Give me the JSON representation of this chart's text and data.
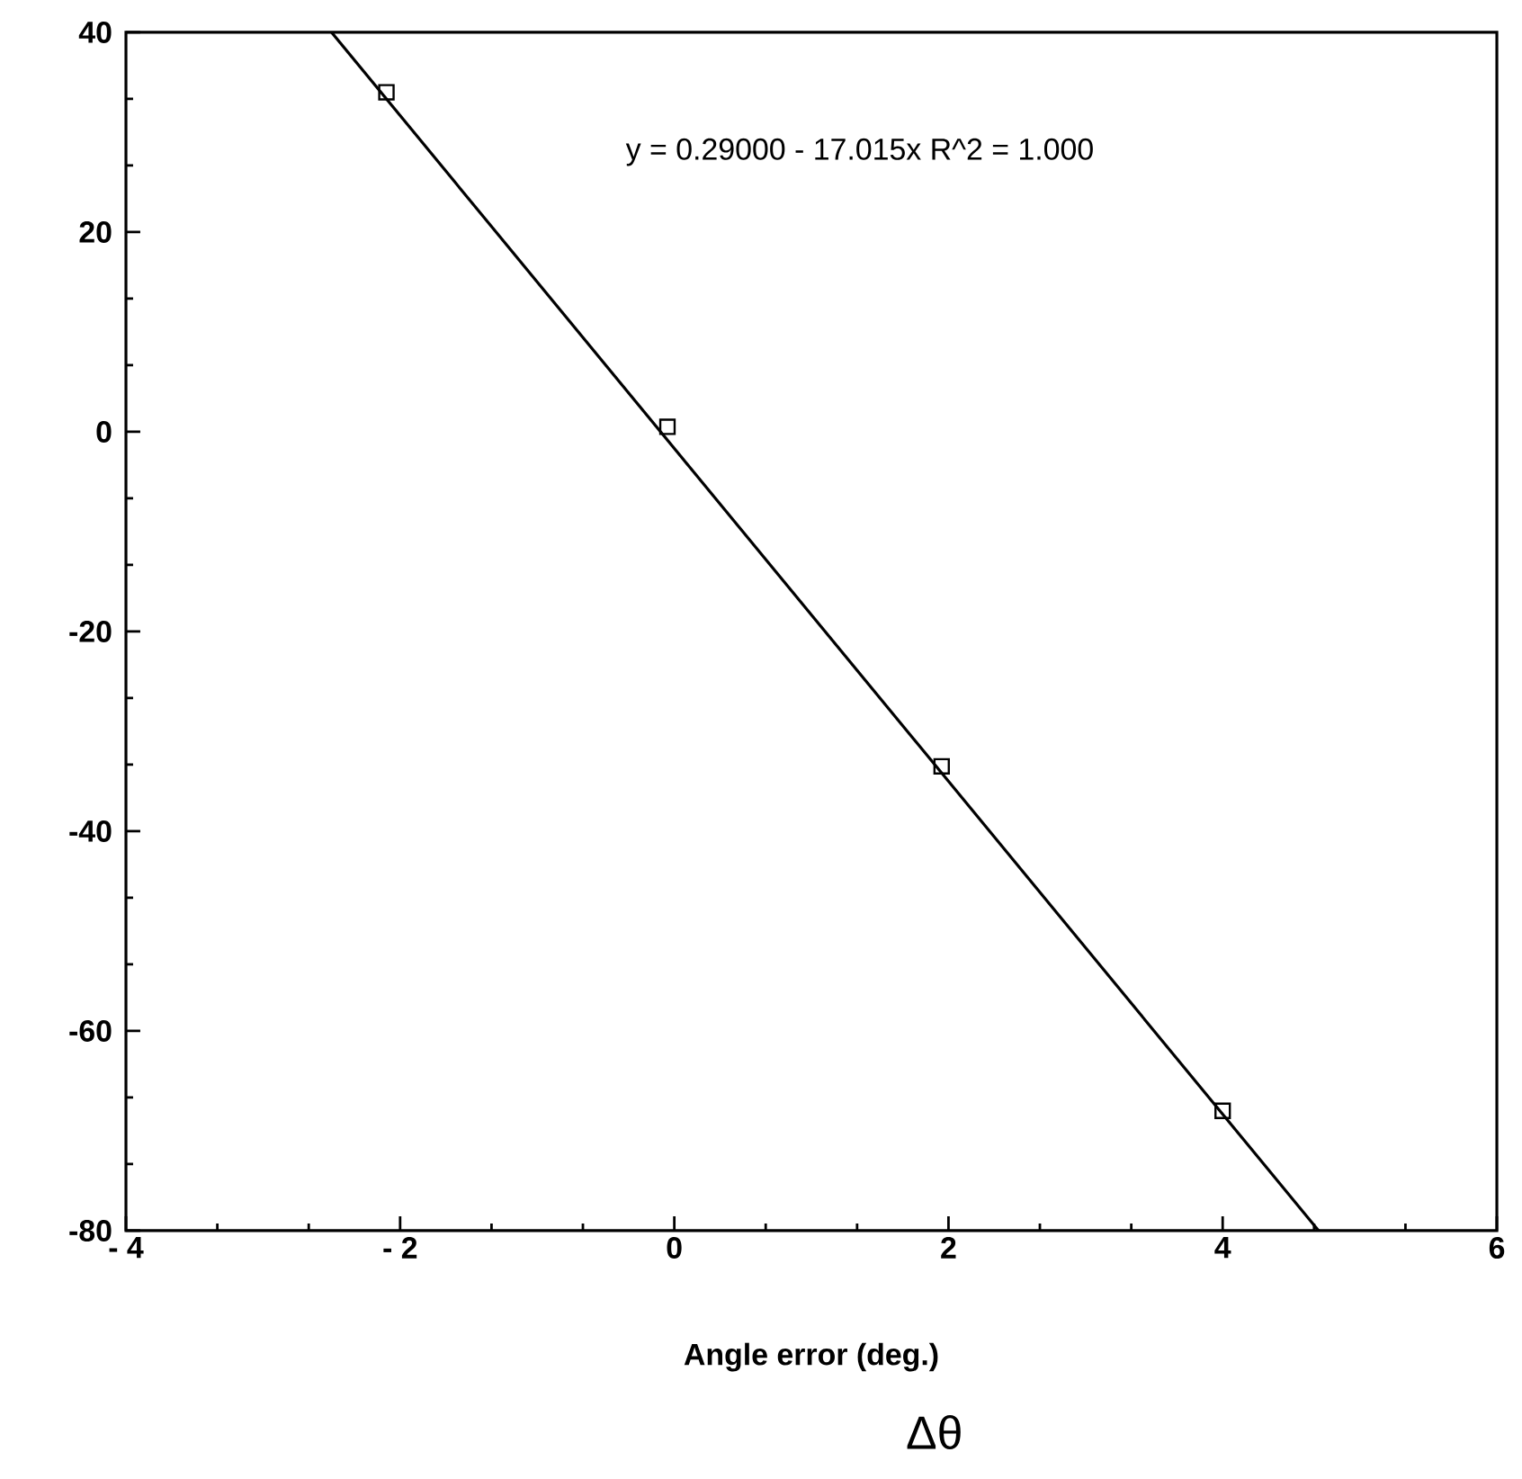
{
  "chart_data": {
    "type": "scatter",
    "xlabel": "Angle error (deg.)",
    "annotations": [
      "y = 0.29000 - 17.015x   R^2 = 1.000",
      "Δθ"
    ],
    "xlim": [
      -4,
      6
    ],
    "ylim": [
      -80,
      40
    ],
    "xticks": [
      {
        "value": -4,
        "label": "- 4"
      },
      {
        "value": -2,
        "label": "- 2"
      },
      0,
      2,
      4,
      6
    ],
    "yticks": [
      -80,
      -60,
      -40,
      -20,
      0,
      20,
      40
    ],
    "grid": false,
    "series": [
      {
        "color": "#000000",
        "marker": "square",
        "x": [
          -2.1,
          -0.05,
          1.95,
          4.0
        ],
        "values": [
          34,
          0.5,
          -33.5,
          -68
        ]
      },
      {
        "type": "line",
        "color": "#000000",
        "marker": "none",
        "line_style": "solid",
        "x": [
          -2.5,
          4.7
        ],
        "values": [
          40,
          -80
        ]
      }
    ]
  }
}
